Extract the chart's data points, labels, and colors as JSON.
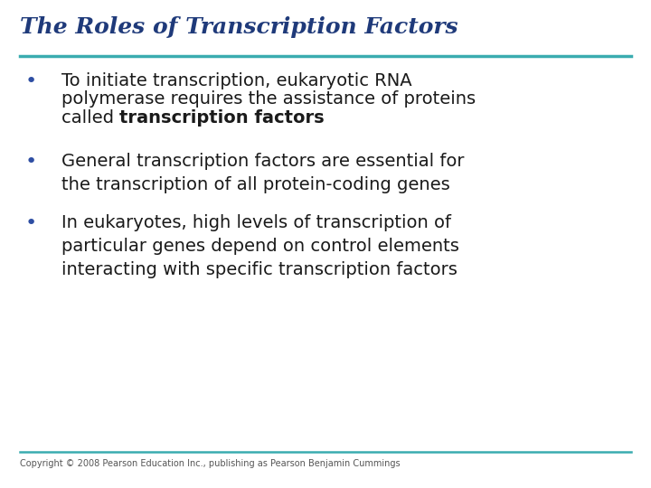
{
  "title": "The Roles of Transcription Factors",
  "title_color": "#1F3A7A",
  "title_fontsize": 18,
  "title_style": "italic",
  "title_weight": "bold",
  "slide_bg": "#FFFFFF",
  "rule_color": "#3AACB0",
  "bullet_color": "#2E4EA3",
  "bullet_char": "•",
  "text_color": "#1a1a1a",
  "body_fontsize": 14,
  "copyright_text": "Copyright © 2008 Pearson Education Inc., publishing as Pearson Benjamin Cummings",
  "copyright_fontsize": 7,
  "copyright_color": "#555555",
  "bullet1_normal_lines": [
    "To initiate transcription, eukaryotic RNA",
    "polymerase requires the assistance of proteins",
    "called "
  ],
  "bullet1_bold": "transcription factors",
  "bullet2_text": "General transcription factors are essential for\nthe transcription of all protein-coding genes",
  "bullet3_text": "In eukaryotes, high levels of transcription of\nparticular genes depend on control elements\ninteracting with specific transcription factors"
}
